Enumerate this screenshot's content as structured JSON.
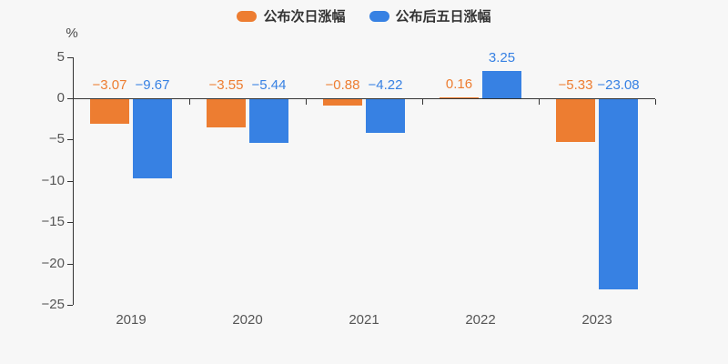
{
  "chart": {
    "background": "#f7f7f7",
    "axis_color": "#333333",
    "tick_label_color": "#555555",
    "legend_text_color": "#333333"
  },
  "chart_data": {
    "type": "bar",
    "title": "",
    "categories": [
      "2019",
      "2020",
      "2021",
      "2022",
      "2023"
    ],
    "series": [
      {
        "name": "公布次日涨幅",
        "color": "#ed7d31",
        "values": [
          -3.07,
          -3.55,
          -0.88,
          0.16,
          -5.33
        ],
        "labels": [
          "−3.07",
          "−3.55",
          "−0.88",
          "0.16",
          "−5.33"
        ]
      },
      {
        "name": "公布后五日涨幅",
        "color": "#3781e3",
        "values": [
          -9.67,
          -5.44,
          -4.22,
          3.25,
          -23.08
        ],
        "labels": [
          "−9.67",
          "−5.44",
          "−4.22",
          "3.25",
          "−23.08"
        ]
      }
    ],
    "xlabel": "",
    "ylabel": "%",
    "ylim": [
      -25,
      5
    ],
    "y_ticks": [
      5,
      0,
      -5,
      -10,
      -15,
      -20,
      -25
    ],
    "grid": false,
    "legend_position": "top-center"
  }
}
